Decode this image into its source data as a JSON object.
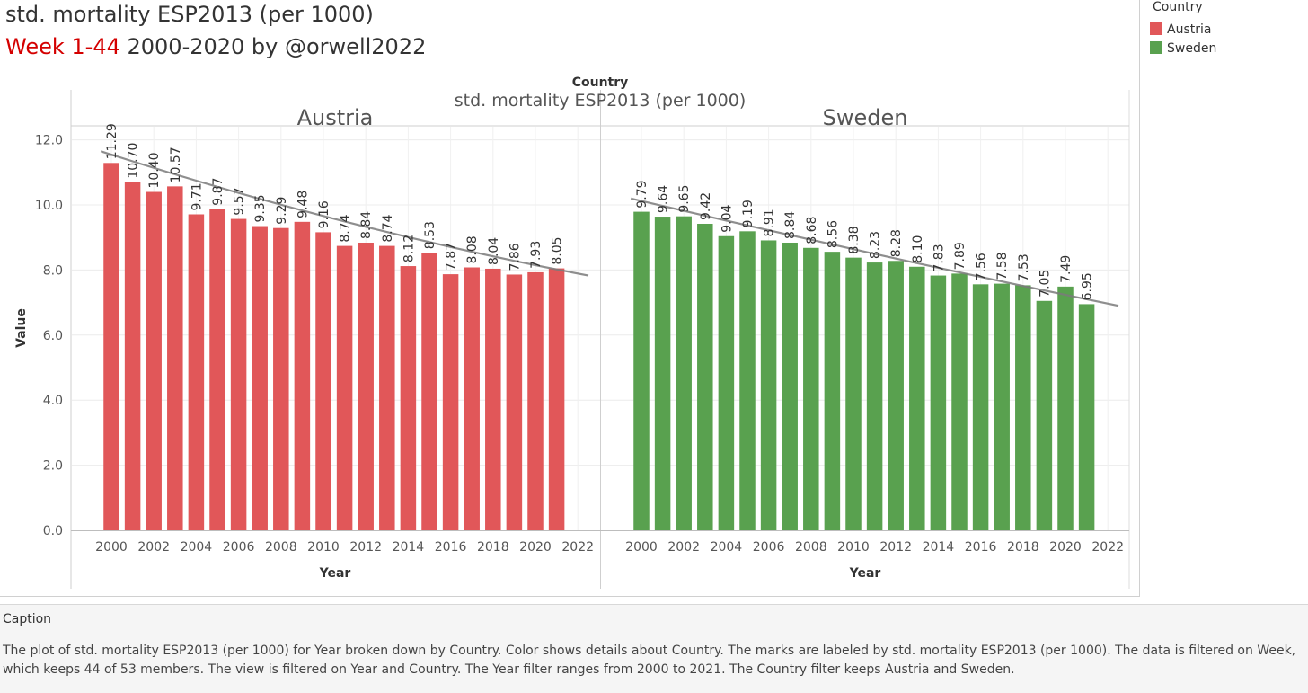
{
  "header": {
    "title_line1": "std. mortality ESP2013  (per 1000)",
    "title_line2_red": "Week 1-44",
    "title_line2_rest": " 2000-2020 by @orwell2022"
  },
  "legend": {
    "title": "Country",
    "items": [
      {
        "label": "Austria",
        "color": "#e15759"
      },
      {
        "label": "Sweden",
        "color": "#59a14f"
      }
    ]
  },
  "chart_data": {
    "type": "bar",
    "column_header": "Country",
    "measure_title": "std. mortality ESP2013  (per 1000)",
    "xlabel": "Year",
    "ylabel": "Value",
    "ylim": [
      0,
      12
    ],
    "y_ticks": [
      "0.0",
      "2.0",
      "4.0",
      "6.0",
      "8.0",
      "10.0",
      "12.0"
    ],
    "x_ticks": [
      "2000",
      "2002",
      "2004",
      "2006",
      "2008",
      "2010",
      "2012",
      "2014",
      "2016",
      "2018",
      "2020",
      "2022"
    ],
    "years": [
      2000,
      2001,
      2002,
      2003,
      2004,
      2005,
      2006,
      2007,
      2008,
      2009,
      2010,
      2011,
      2012,
      2013,
      2014,
      2015,
      2016,
      2017,
      2018,
      2019,
      2020,
      2021
    ],
    "series": [
      {
        "name": "Austria",
        "color": "#e15759",
        "values": [
          11.29,
          10.7,
          10.4,
          10.57,
          9.71,
          9.87,
          9.57,
          9.35,
          9.29,
          9.48,
          9.16,
          8.74,
          8.84,
          8.74,
          8.12,
          8.53,
          7.87,
          8.08,
          8.04,
          7.86,
          7.93,
          8.05
        ],
        "labels": [
          "11.29",
          "10.70",
          "10.40",
          "10.57",
          "9.71",
          "9.87",
          "9.57",
          "9.35",
          "9.29",
          "9.48",
          "9.16",
          "8.74",
          "8.84",
          "8.74",
          "8.12",
          "8.53",
          "7.87",
          "8.08",
          "8.04",
          "7.86",
          "7.93",
          "8.05"
        ],
        "trend": {
          "start_year": 1999.5,
          "start_value": 11.65,
          "end_year": 2022.5,
          "end_value": 7.83
        }
      },
      {
        "name": "Sweden",
        "color": "#59a14f",
        "values": [
          9.79,
          9.64,
          9.65,
          9.42,
          9.04,
          9.19,
          8.91,
          8.84,
          8.68,
          8.56,
          8.38,
          8.23,
          8.28,
          8.1,
          7.83,
          7.89,
          7.56,
          7.58,
          7.53,
          7.05,
          7.49,
          6.95
        ],
        "labels": [
          "9.79",
          "9.64",
          "9.65",
          "9.42",
          "9.04",
          "9.19",
          "8.91",
          "8.84",
          "8.68",
          "8.56",
          "8.38",
          "8.23",
          "8.28",
          "8.10",
          "7.83",
          "7.89",
          "7.56",
          "7.58",
          "7.53",
          "7.05",
          "7.49",
          "6.95"
        ],
        "trend": {
          "start_year": 1999.5,
          "start_value": 10.2,
          "end_year": 2022.5,
          "end_value": 6.9
        }
      }
    ]
  },
  "caption": {
    "heading": "Caption",
    "text": "The plot of std. mortality ESP2013  (per 1000) for Year broken down by Country.  Color shows details about Country.  The marks are labeled by std. mortality ESP2013  (per 1000). The data is filtered on Week, which keeps 44 of 53 members. The view is filtered on Year and Country. The Year filter ranges from 2000 to 2021. The Country filter keeps Austria and Sweden."
  }
}
